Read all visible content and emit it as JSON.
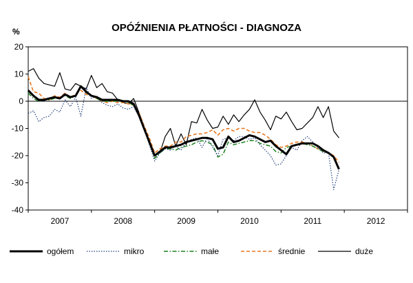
{
  "chart_data": {
    "type": "line",
    "title": "OPÓŹNIENIA PŁATNOŚCI - DIAGNOZA",
    "ylabel": "%",
    "xlabel": "",
    "ylim": [
      -40,
      20
    ],
    "yticks": [
      20,
      10,
      0,
      -10,
      -20,
      -30,
      -40
    ],
    "xlim": [
      2007.0,
      2013.0
    ],
    "xticks": [
      "2007",
      "2008",
      "2009",
      "2010",
      "2011",
      "2012"
    ],
    "grid": false,
    "legend_position": "bottom",
    "x": [
      2007.0,
      2007.083,
      2007.167,
      2007.25,
      2007.333,
      2007.417,
      2007.5,
      2007.583,
      2007.667,
      2007.75,
      2007.833,
      2007.917,
      2008.0,
      2008.083,
      2008.167,
      2008.25,
      2008.333,
      2008.417,
      2008.5,
      2008.583,
      2008.667,
      2008.75,
      2008.833,
      2008.917,
      2009.0,
      2009.083,
      2009.167,
      2009.25,
      2009.333,
      2009.417,
      2009.5,
      2009.583,
      2009.667,
      2009.75,
      2009.833,
      2009.917,
      2010.0,
      2010.083,
      2010.167,
      2010.25,
      2010.333,
      2010.417,
      2010.5,
      2010.583,
      2010.667,
      2010.75,
      2010.833,
      2010.917,
      2011.0,
      2011.083,
      2011.167,
      2011.25,
      2011.333,
      2011.417,
      2011.5,
      2011.583,
      2011.667,
      2011.75,
      2011.833,
      2011.917
    ],
    "series": [
      {
        "name": "ogółem",
        "color": "#000000",
        "values": [
          4.0,
          2.0,
          0.5,
          0.5,
          1.0,
          1.5,
          1.0,
          2.5,
          1.5,
          2.0,
          5.5,
          3.5,
          2.0,
          1.5,
          0.5,
          0.5,
          0.5,
          0.5,
          0.0,
          0.0,
          -1.0,
          -5.0,
          -10.0,
          -15.0,
          -20.0,
          -18.5,
          -17.0,
          -17.0,
          -16.5,
          -16.0,
          -15.0,
          -14.5,
          -14.0,
          -13.5,
          -13.5,
          -14.0,
          -17.5,
          -17.0,
          -13.0,
          -15.0,
          -14.5,
          -13.5,
          -12.5,
          -13.0,
          -14.0,
          -15.0,
          -14.5,
          -16.5,
          -18.0,
          -19.5,
          -16.5,
          -16.0,
          -15.5,
          -15.5,
          -15.5,
          -16.5,
          -18.0,
          -19.0,
          -20.5,
          -25.0
        ]
      },
      {
        "name": "mikro",
        "color": "#1f3d7a",
        "values": [
          -4.5,
          -3.5,
          -7.5,
          -6.0,
          -5.5,
          -3.0,
          -4.0,
          0.5,
          -2.0,
          1.5,
          -5.5,
          5.0,
          1.0,
          2.0,
          -0.5,
          -1.5,
          -2.0,
          -1.0,
          -2.5,
          -3.0,
          -2.0,
          -5.5,
          -10.0,
          -16.0,
          -22.0,
          -19.0,
          -17.5,
          -18.0,
          -16.5,
          -18.0,
          -15.0,
          -14.0,
          -13.5,
          -17.0,
          -13.5,
          -17.0,
          -20.0,
          -14.0,
          -13.5,
          -14.5,
          -13.0,
          -13.0,
          -14.0,
          -13.5,
          -16.0,
          -18.0,
          -20.0,
          -23.5,
          -23.0,
          -20.0,
          -17.0,
          -18.0,
          -14.5,
          -13.0,
          -15.0,
          -17.0,
          -19.0,
          -19.0,
          -32.5,
          -25.0
        ]
      },
      {
        "name": "małe",
        "color": "#1a7f1a",
        "values": [
          3.0,
          1.0,
          0.0,
          0.5,
          0.5,
          1.0,
          1.0,
          2.0,
          1.0,
          2.0,
          6.0,
          3.0,
          2.0,
          1.0,
          0.0,
          0.0,
          0.0,
          0.0,
          0.0,
          -0.5,
          -1.5,
          -5.5,
          -10.5,
          -15.0,
          -21.0,
          -19.0,
          -17.5,
          -17.5,
          -18.0,
          -17.0,
          -16.5,
          -16.0,
          -15.0,
          -14.5,
          -15.0,
          -16.0,
          -20.5,
          -19.5,
          -15.0,
          -16.0,
          -15.5,
          -15.0,
          -14.5,
          -14.5,
          -15.5,
          -16.0,
          -16.5,
          -18.5,
          -19.0,
          -17.0,
          -16.5,
          -16.0,
          -15.5,
          -16.0,
          -16.5,
          -17.5,
          -18.5,
          -19.0,
          -20.5,
          -24.5
        ]
      },
      {
        "name": "średnie",
        "color": "#e8771e",
        "values": [
          9.0,
          3.5,
          3.0,
          1.0,
          0.5,
          2.0,
          1.5,
          3.0,
          1.5,
          2.5,
          4.0,
          2.5,
          2.0,
          1.0,
          0.0,
          -0.5,
          0.0,
          -0.5,
          -0.5,
          -1.0,
          -1.5,
          -4.0,
          -9.0,
          -13.5,
          -19.0,
          -17.5,
          -16.5,
          -16.5,
          -15.0,
          -15.0,
          -13.0,
          -12.5,
          -12.0,
          -12.0,
          -11.5,
          -10.5,
          -12.5,
          -10.5,
          -10.0,
          -11.0,
          -10.0,
          -10.0,
          -11.0,
          -11.5,
          -11.5,
          -12.5,
          -14.0,
          -16.0,
          -17.0,
          -16.5,
          -15.5,
          -15.0,
          -15.0,
          -15.5,
          -16.5,
          -17.5,
          -18.5,
          -19.0,
          -20.0,
          -22.5
        ]
      },
      {
        "name": "duże",
        "color": "#000000",
        "values": [
          11.0,
          12.0,
          8.5,
          6.5,
          6.0,
          5.5,
          10.5,
          4.5,
          4.0,
          6.5,
          5.5,
          4.5,
          9.5,
          5.0,
          6.5,
          3.5,
          3.0,
          0.5,
          -0.5,
          -1.0,
          1.0,
          -4.0,
          -9.5,
          -15.5,
          -20.0,
          -19.0,
          -13.0,
          -10.0,
          -16.5,
          -12.0,
          -16.0,
          -7.5,
          -8.0,
          -3.0,
          -7.0,
          -10.0,
          -9.5,
          -5.5,
          -8.5,
          -5.0,
          -7.5,
          -5.0,
          -3.0,
          0.5,
          -4.0,
          -7.0,
          -10.5,
          -5.5,
          -6.5,
          -4.0,
          -7.5,
          -10.5,
          -10.0,
          -8.0,
          -6.0,
          -2.0,
          -6.0,
          -2.0,
          -11.0,
          -13.5
        ]
      }
    ]
  }
}
